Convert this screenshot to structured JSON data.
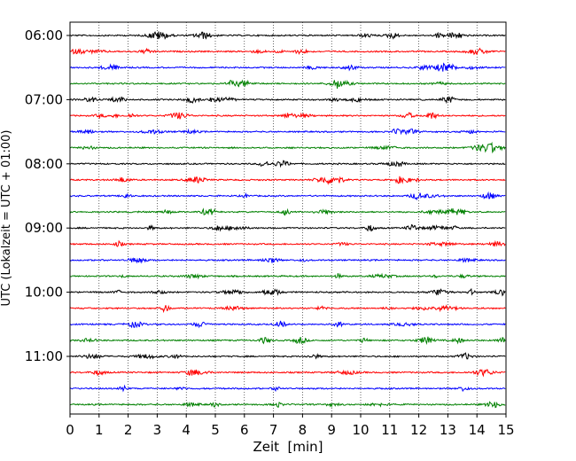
{
  "chart_data": {
    "type": "line",
    "title": "",
    "xlabel": "Zeit  [min]",
    "ylabel": "UTC (Lokalzeit = UTC + 01:00)",
    "xlim": [
      0,
      15
    ],
    "x_ticks": [
      "0",
      "1",
      "2",
      "3",
      "4",
      "5",
      "6",
      "7",
      "8",
      "9",
      "10",
      "11",
      "12",
      "13",
      "14",
      "15"
    ],
    "y_ticks": [
      "06:00",
      "07:00",
      "08:00",
      "09:00",
      "10:00",
      "11:00"
    ],
    "trace_start_times": [
      "06:00",
      "06:15",
      "06:30",
      "06:45",
      "07:00",
      "07:15",
      "07:30",
      "07:45",
      "08:00",
      "08:15",
      "08:30",
      "08:45",
      "09:00",
      "09:15",
      "09:30",
      "09:45",
      "10:00",
      "10:15",
      "10:30",
      "10:45",
      "11:00",
      "11:15",
      "11:30",
      "11:45"
    ],
    "trace_colors": [
      "#000000",
      "#ff0000",
      "#0000ff",
      "#008000"
    ],
    "trace_duration_min": 15,
    "grid": "vertical dotted lines at each minute",
    "legend": "none"
  }
}
